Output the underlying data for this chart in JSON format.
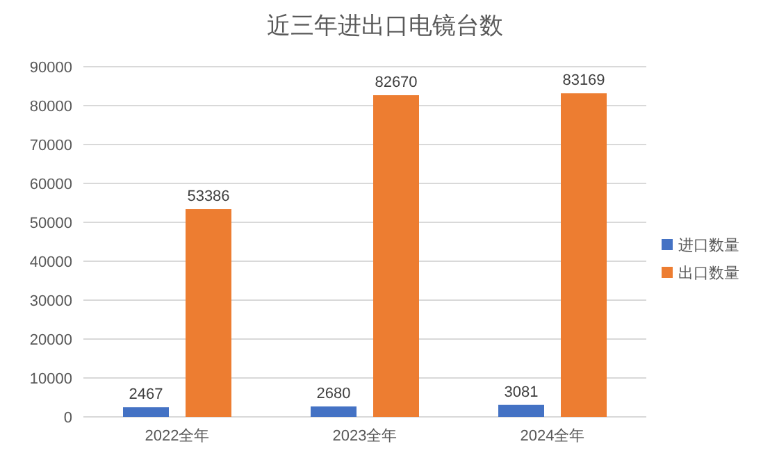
{
  "chart_data": {
    "type": "bar",
    "title": "近三年进出口电镜台数",
    "categories": [
      "2022全年",
      "2023全年",
      "2024全年"
    ],
    "series": [
      {
        "name": "进口数量",
        "color": "#4472c4",
        "values": [
          2467,
          2680,
          3081
        ]
      },
      {
        "name": "出口数量",
        "color": "#ed7d31",
        "values": [
          53386,
          82670,
          83169
        ]
      }
    ],
    "ylim": [
      0,
      90000
    ],
    "yticks": [
      0,
      10000,
      20000,
      30000,
      40000,
      50000,
      60000,
      70000,
      80000,
      90000
    ],
    "grid": "y",
    "legend": "right",
    "data_labels": true
  }
}
